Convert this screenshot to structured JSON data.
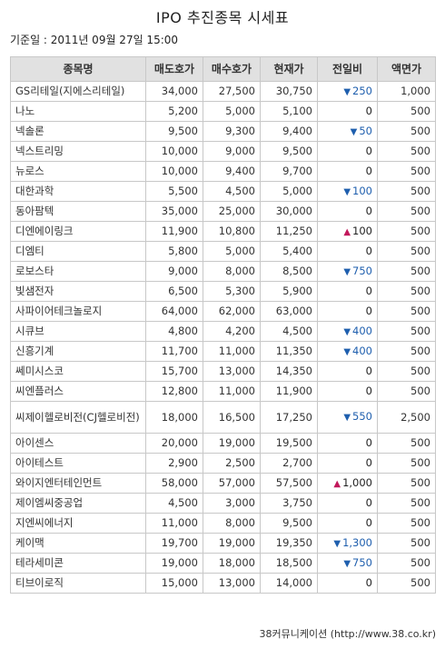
{
  "title": "IPO 추진종목 시세표",
  "base_date": "기준일 : 2011년 09월 27일 15:00",
  "columns": [
    "종목명",
    "매도호가",
    "매수호가",
    "현재가",
    "전일비",
    "액면가"
  ],
  "rows": [
    {
      "name": "GS리테일(지에스리테일)",
      "ask": "34,000",
      "bid": "27,500",
      "price": "30,750",
      "dir": "down",
      "change": "250",
      "par": "1,000"
    },
    {
      "name": "나노",
      "ask": "5,200",
      "bid": "5,000",
      "price": "5,100",
      "dir": "none",
      "change": "0",
      "par": "500"
    },
    {
      "name": "넥솔론",
      "ask": "9,500",
      "bid": "9,300",
      "price": "9,400",
      "dir": "down",
      "change": "50",
      "par": "500"
    },
    {
      "name": "넥스트리밍",
      "ask": "10,000",
      "bid": "9,000",
      "price": "9,500",
      "dir": "none",
      "change": "0",
      "par": "500"
    },
    {
      "name": "뉴로스",
      "ask": "10,000",
      "bid": "9,400",
      "price": "9,700",
      "dir": "none",
      "change": "0",
      "par": "500"
    },
    {
      "name": "대한과학",
      "ask": "5,500",
      "bid": "4,500",
      "price": "5,000",
      "dir": "down",
      "change": "100",
      "par": "500"
    },
    {
      "name": "동아팜텍",
      "ask": "35,000",
      "bid": "25,000",
      "price": "30,000",
      "dir": "none",
      "change": "0",
      "par": "500"
    },
    {
      "name": "디엔에이링크",
      "ask": "11,900",
      "bid": "10,800",
      "price": "11,250",
      "dir": "up",
      "change": "100",
      "par": "500"
    },
    {
      "name": "디엠티",
      "ask": "5,800",
      "bid": "5,000",
      "price": "5,400",
      "dir": "none",
      "change": "0",
      "par": "500"
    },
    {
      "name": "로보스타",
      "ask": "9,000",
      "bid": "8,000",
      "price": "8,500",
      "dir": "down",
      "change": "750",
      "par": "500"
    },
    {
      "name": "빛샘전자",
      "ask": "6,500",
      "bid": "5,300",
      "price": "5,900",
      "dir": "none",
      "change": "0",
      "par": "500"
    },
    {
      "name": "사파이어테크놀로지",
      "ask": "64,000",
      "bid": "62,000",
      "price": "63,000",
      "dir": "none",
      "change": "0",
      "par": "500"
    },
    {
      "name": "시큐브",
      "ask": "4,800",
      "bid": "4,200",
      "price": "4,500",
      "dir": "down",
      "change": "400",
      "par": "500"
    },
    {
      "name": "신흥기계",
      "ask": "11,700",
      "bid": "11,000",
      "price": "11,350",
      "dir": "down",
      "change": "400",
      "par": "500"
    },
    {
      "name": "쎄미시스코",
      "ask": "15,700",
      "bid": "13,000",
      "price": "14,350",
      "dir": "none",
      "change": "0",
      "par": "500"
    },
    {
      "name": "씨엔플러스",
      "ask": "12,800",
      "bid": "11,000",
      "price": "11,900",
      "dir": "none",
      "change": "0",
      "par": "500"
    },
    {
      "name": "씨제이헬로비전(CJ헬로비전)",
      "ask": "18,000",
      "bid": "16,500",
      "price": "17,250",
      "dir": "down",
      "change": "550",
      "par": "2,500",
      "tall": true
    },
    {
      "name": "아이센스",
      "ask": "20,000",
      "bid": "19,000",
      "price": "19,500",
      "dir": "none",
      "change": "0",
      "par": "500"
    },
    {
      "name": "아이테스트",
      "ask": "2,900",
      "bid": "2,500",
      "price": "2,700",
      "dir": "none",
      "change": "0",
      "par": "500"
    },
    {
      "name": "와이지엔터테인먼트",
      "ask": "58,000",
      "bid": "57,000",
      "price": "57,500",
      "dir": "up",
      "change": "1,000",
      "par": "500"
    },
    {
      "name": "제이엠씨중공업",
      "ask": "4,500",
      "bid": "3,000",
      "price": "3,750",
      "dir": "none",
      "change": "0",
      "par": "500"
    },
    {
      "name": "지엔씨에너지",
      "ask": "11,000",
      "bid": "8,000",
      "price": "9,500",
      "dir": "none",
      "change": "0",
      "par": "500"
    },
    {
      "name": "케이맥",
      "ask": "19,700",
      "bid": "19,000",
      "price": "19,350",
      "dir": "down",
      "change": "1,300",
      "par": "500"
    },
    {
      "name": "테라세미콘",
      "ask": "19,000",
      "bid": "18,000",
      "price": "18,500",
      "dir": "down",
      "change": "750",
      "par": "500"
    },
    {
      "name": "티브이로직",
      "ask": "15,000",
      "bid": "13,000",
      "price": "14,000",
      "dir": "none",
      "change": "0",
      "par": "500"
    }
  ],
  "credit": "38커뮤니케이션 (http://www.38.co.kr)"
}
